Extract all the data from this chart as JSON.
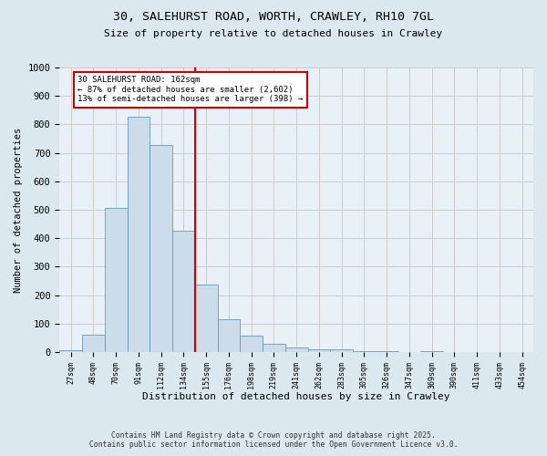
{
  "title_line1": "30, SALEHURST ROAD, WORTH, CRAWLEY, RH10 7GL",
  "title_line2": "Size of property relative to detached houses in Crawley",
  "xlabel": "Distribution of detached houses by size in Crawley",
  "ylabel": "Number of detached properties",
  "bar_values": [
    8,
    60,
    505,
    828,
    727,
    428,
    238,
    115,
    57,
    30,
    15,
    10,
    9,
    5,
    4,
    0,
    5,
    0,
    0,
    0,
    0
  ],
  "bar_labels": [
    "27sqm",
    "48sqm",
    "70sqm",
    "91sqm",
    "112sqm",
    "134sqm",
    "155sqm",
    "176sqm",
    "198sqm",
    "219sqm",
    "241sqm",
    "262sqm",
    "283sqm",
    "305sqm",
    "326sqm",
    "347sqm",
    "369sqm",
    "390sqm",
    "411sqm",
    "433sqm",
    "454sqm"
  ],
  "bar_color": "#ccdce8",
  "bar_edge_color": "#6699bb",
  "vline_x_index": 6,
  "vline_color": "#cc0000",
  "annotation_text": "30 SALEHURST ROAD: 162sqm\n← 87% of detached houses are smaller (2,602)\n13% of semi-detached houses are larger (398) →",
  "annotation_box_color": "#ffffff",
  "annotation_box_edge_color": "#cc0000",
  "ylim": [
    0,
    1000
  ],
  "yticks": [
    0,
    100,
    200,
    300,
    400,
    500,
    600,
    700,
    800,
    900,
    1000
  ],
  "grid_color": "#cccccc",
  "background_color": "#dce8f0",
  "plot_bg_color": "#e8f0f8",
  "footer_line1": "Contains HM Land Registry data © Crown copyright and database right 2025.",
  "footer_line2": "Contains public sector information licensed under the Open Government Licence v3.0."
}
